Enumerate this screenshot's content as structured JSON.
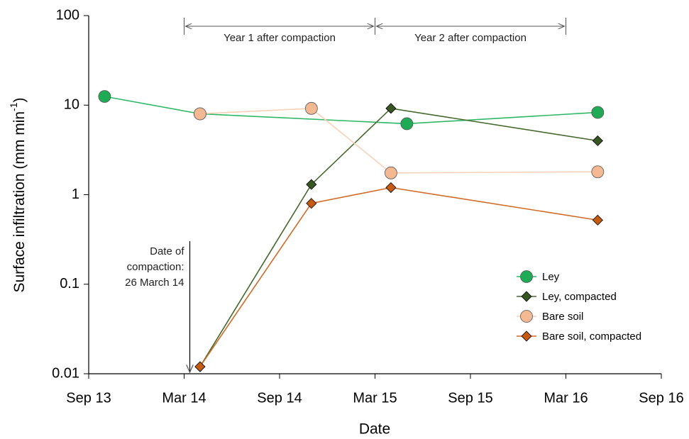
{
  "chart_data": {
    "type": "line",
    "x_label": "Date",
    "y_label": [
      "Surface infiltration (mm min",
      "-1",
      ")"
    ],
    "log_y": true,
    "grid": false,
    "legend_position": "right",
    "xlim": [
      "2013-09",
      "2016-09"
    ],
    "xticks": [
      {
        "value": "2013-09",
        "label": "Sep 13"
      },
      {
        "value": "2014-03",
        "label": "Mar 14"
      },
      {
        "value": "2014-09",
        "label": "Sep 14"
      },
      {
        "value": "2015-03",
        "label": "Mar 15"
      },
      {
        "value": "2015-09",
        "label": "Sep 15"
      },
      {
        "value": "2016-03",
        "label": "Mar 16"
      },
      {
        "value": "2016-09",
        "label": "Sep 16"
      }
    ],
    "ylim": [
      0.01,
      100
    ],
    "yticks": [
      0.01,
      0.1,
      1,
      10,
      100
    ],
    "annotations": [
      {
        "text": "Year 1 after compaction",
        "x_start": "2014-03",
        "x_end": "2015-03"
      },
      {
        "text": "Year 2 after compaction",
        "x_start": "2015-03",
        "x_end": "2016-03"
      },
      {
        "lines": [
          "Date of",
          "compaction:",
          "26 March 14"
        ],
        "x": "2014-03"
      }
    ],
    "series": [
      {
        "name": "Ley",
        "color": "#1faa55",
        "line_color": "#2fb866",
        "marker": "circle",
        "x": [
          "2013-10",
          "2014-04",
          "2015-05",
          "2016-05"
        ],
        "values": [
          12.5,
          8,
          6.2,
          8.3
        ]
      },
      {
        "name": "Ley, compacted",
        "color": "#375623",
        "line_color": "#44682c",
        "marker": "diamond",
        "x": [
          "2014-04",
          "2014-11",
          "2015-04",
          "2016-05"
        ],
        "values": [
          0.012,
          1.3,
          9.2,
          4.0
        ]
      },
      {
        "name": "Bare soil",
        "color": "#f4b893",
        "line_color": "#f8d2b8",
        "marker": "circle",
        "x": [
          "2014-04",
          "2014-11",
          "2015-04",
          "2016-05"
        ],
        "values": [
          8,
          9.2,
          1.75,
          1.8
        ]
      },
      {
        "name": "Bare soil, compacted",
        "color": "#c55a11",
        "line_color": "#d06a25",
        "marker": "diamond",
        "x": [
          "2014-04",
          "2014-11",
          "2015-04",
          "2016-05"
        ],
        "values": [
          0.012,
          0.8,
          1.2,
          0.52
        ]
      }
    ]
  }
}
